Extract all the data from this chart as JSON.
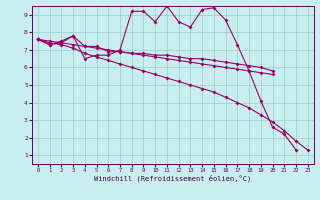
{
  "xlabel": "Windchill (Refroidissement éolien,°C)",
  "bg_color": "#c8eef0",
  "line_color": "#990066",
  "grid_color": "#99cccc",
  "xlim": [
    -0.5,
    23.5
  ],
  "ylim": [
    0.5,
    9.5
  ],
  "xticks": [
    0,
    1,
    2,
    3,
    4,
    5,
    6,
    7,
    8,
    9,
    10,
    11,
    12,
    13,
    14,
    15,
    16,
    17,
    18,
    19,
    20,
    21,
    22,
    23
  ],
  "yticks": [
    1,
    2,
    3,
    4,
    5,
    6,
    7,
    8,
    9
  ],
  "lines": [
    [
      7.6,
      7.3,
      7.4,
      7.8,
      6.5,
      6.7,
      6.7,
      7.0,
      9.2,
      9.2,
      8.6,
      9.5,
      8.6,
      8.3,
      9.3,
      9.4,
      8.7,
      7.3,
      5.8,
      4.1,
      2.6,
      2.2,
      1.3,
      null
    ],
    [
      7.6,
      7.3,
      7.5,
      7.8,
      7.2,
      7.2,
      6.9,
      6.9,
      6.8,
      6.8,
      6.7,
      6.7,
      6.6,
      6.5,
      6.5,
      6.4,
      6.3,
      6.2,
      6.1,
      6.0,
      5.8,
      null,
      null,
      null
    ],
    [
      7.6,
      7.4,
      7.3,
      7.1,
      6.8,
      6.6,
      6.4,
      6.2,
      6.0,
      5.8,
      5.6,
      5.4,
      5.2,
      5.0,
      4.8,
      4.6,
      4.3,
      4.0,
      3.7,
      3.3,
      2.9,
      2.4,
      1.8,
      1.3
    ],
    [
      7.6,
      7.5,
      7.4,
      7.3,
      7.2,
      7.1,
      7.0,
      6.9,
      6.8,
      6.7,
      6.6,
      6.5,
      6.4,
      6.3,
      6.2,
      6.1,
      6.0,
      5.9,
      5.8,
      5.7,
      5.6,
      null,
      null,
      null
    ]
  ]
}
